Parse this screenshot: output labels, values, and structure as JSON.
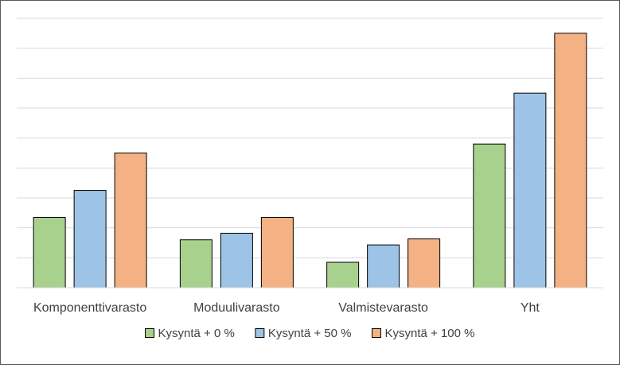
{
  "chart_data": {
    "type": "bar",
    "categories": [
      "Komponenttivarasto",
      "Moduulivarasto",
      "Valmistevarasto",
      "Yht"
    ],
    "series": [
      {
        "name": "Kysyntä + 0 %",
        "values": [
          2.35,
          1.6,
          0.85,
          4.8
        ],
        "color": "#A9D18E"
      },
      {
        "name": "Kysyntä + 50 %",
        "values": [
          3.25,
          1.82,
          1.43,
          6.5
        ],
        "color": "#9DC3E6"
      },
      {
        "name": "Kysyntä + 100 %",
        "values": [
          4.5,
          2.35,
          1.63,
          8.5
        ],
        "color": "#F4B183"
      }
    ],
    "ylim": [
      0,
      9
    ],
    "grid": true,
    "y_tick_labels_shown": false,
    "legend_position": "bottom"
  }
}
